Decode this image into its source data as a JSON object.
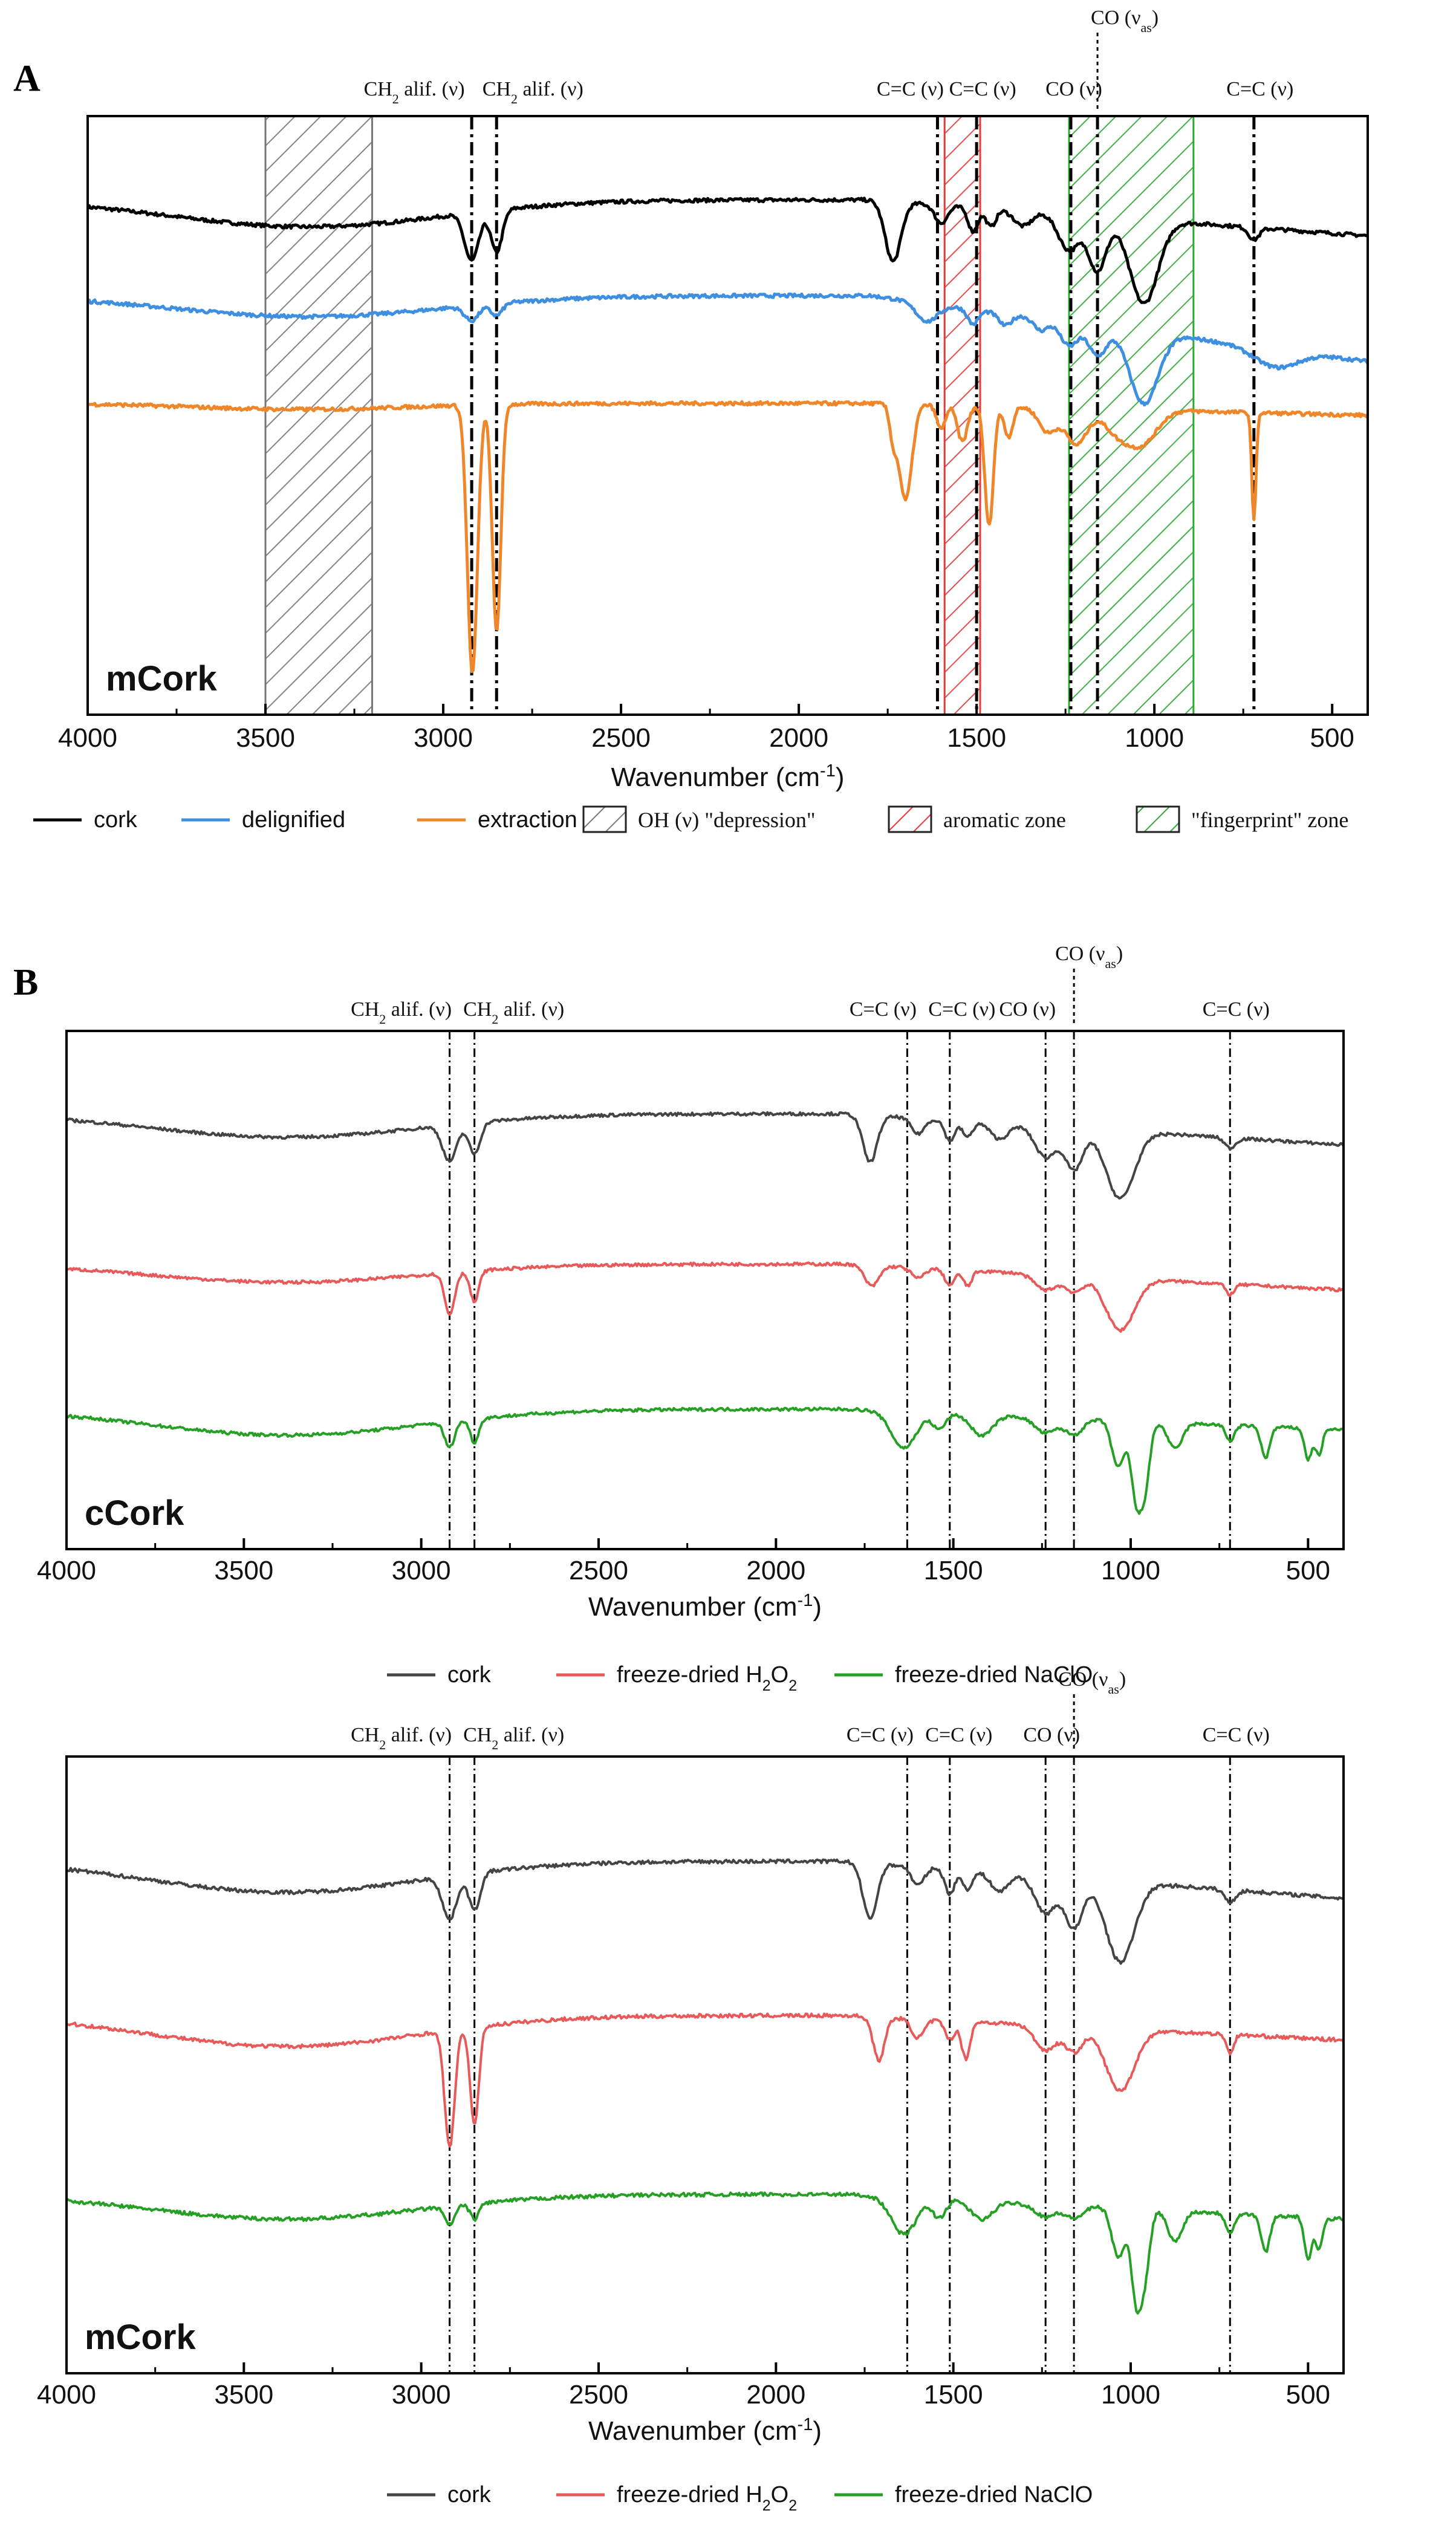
{
  "figure_labels": {
    "A": "A",
    "B": "B"
  },
  "colors": {
    "cork_A": "#000000",
    "delignified": "#3f8fe0",
    "extraction": "#f0862a",
    "cork_B": "#444444",
    "h2o2": "#e85a5a",
    "naclo": "#25a025",
    "oh_zone": "#777777",
    "aromatic_zone": "#e43a3a",
    "fingerprint_zone": "#2fa836"
  },
  "chart_data": [
    {
      "type": "line",
      "id": "A",
      "panel_label": "mCork",
      "xlabel": "Wavenumber (cm",
      "xlabel_sup": "-1",
      "xlabel_close": ")",
      "xlim": [
        4000,
        400
      ],
      "ylim": [
        0,
        1
      ],
      "ticks": [
        "4000",
        "3500",
        "3000",
        "2500",
        "2000",
        "1500",
        "1000",
        "500"
      ],
      "tick_values": [
        4000,
        3500,
        3000,
        2500,
        2000,
        1500,
        1000,
        500
      ],
      "series": [
        {
          "name": "cork",
          "color_key": "cork_A",
          "offset": 0.86,
          "bands": [
            [
              3380,
              380,
              0.045
            ],
            [
              2920,
              20,
              0.08
            ],
            [
              2850,
              16,
              0.07
            ],
            [
              1735,
              22,
              0.1
            ],
            [
              1600,
              18,
              0.03
            ],
            [
              1510,
              14,
              0.04
            ],
            [
              1460,
              14,
              0.03
            ],
            [
              1370,
              25,
              0.025
            ],
            [
              1240,
              30,
              0.06
            ],
            [
              1160,
              25,
              0.09
            ],
            [
              1030,
              40,
              0.14
            ],
            [
              720,
              15,
              0.02
            ]
          ],
          "tail": 0.06
        },
        {
          "name": "delignified",
          "color_key": "delignified",
          "offset": 0.7,
          "bands": [
            [
              3380,
              380,
              0.035
            ],
            [
              2920,
              20,
              0.025
            ],
            [
              2850,
              16,
              0.02
            ],
            [
              1640,
              30,
              0.03
            ],
            [
              1510,
              15,
              0.025
            ],
            [
              1420,
              18,
              0.02
            ],
            [
              1320,
              20,
              0.02
            ],
            [
              1240,
              25,
              0.04
            ],
            [
              1160,
              25,
              0.05
            ],
            [
              1030,
              40,
              0.12
            ],
            [
              660,
              60,
              0.03
            ]
          ],
          "tail": 0.11
        },
        {
          "name": "extraction",
          "color_key": "extraction",
          "offset": 0.52,
          "bands": [
            [
              3400,
              300,
              0.01
            ],
            [
              2918,
              14,
              0.45
            ],
            [
              2850,
              12,
              0.38
            ],
            [
              1735,
              10,
              0.05
            ],
            [
              1700,
              18,
              0.16
            ],
            [
              1600,
              12,
              0.04
            ],
            [
              1540,
              14,
              0.06
            ],
            [
              1465,
              12,
              0.2
            ],
            [
              1410,
              12,
              0.05
            ],
            [
              1300,
              25,
              0.04
            ],
            [
              1220,
              30,
              0.06
            ],
            [
              1100,
              40,
              0.04
            ],
            [
              1030,
              40,
              0.05
            ],
            [
              720,
              6,
              0.18
            ]
          ],
          "tail": 0.02
        }
      ],
      "legend": [
        {
          "label": "cork",
          "kind": "line",
          "color_key": "cork_A"
        },
        {
          "label": "delignified",
          "kind": "line",
          "color_key": "delignified"
        },
        {
          "label": "extraction",
          "kind": "line",
          "color_key": "extraction"
        },
        {
          "label": "OH (ν)  \"depression\"",
          "kind": "hatch",
          "color_key": "oh_zone"
        },
        {
          "label": "aromatic zone",
          "kind": "hatch",
          "color_key": "aromatic_zone"
        },
        {
          "label": "\"fingerprint\" zone",
          "kind": "hatch",
          "color_key": "fingerprint_zone"
        }
      ],
      "zones": [
        {
          "from": 3500,
          "to": 3200,
          "color_key": "oh_zone"
        },
        {
          "from": 1590,
          "to": 1490,
          "color_key": "aromatic_zone"
        },
        {
          "from": 1240,
          "to": 890,
          "color_key": "fingerprint_zone"
        }
      ],
      "vlines": [
        2920,
        2850,
        1610,
        1500,
        1235,
        1160,
        720
      ],
      "annotations": [
        {
          "x": 2920,
          "text": "CH",
          "sub": "2",
          "rest": " alif. (ν)",
          "dx": -95
        },
        {
          "x": 2850,
          "text": "CH",
          "sub": "2",
          "rest": " alif. (ν)",
          "dx": 60
        },
        {
          "x": 1610,
          "text": "C=C (ν)",
          "dx": -45
        },
        {
          "x": 1500,
          "text": "C=C (ν)",
          "dx": 10
        },
        {
          "x": 1235,
          "text": "CO (ν)",
          "dx": 5
        },
        {
          "x": 1160,
          "text": "CO (ν",
          "sub": "as",
          "rest": ")",
          "dx": 45,
          "high": true
        },
        {
          "x": 720,
          "text": "C=C (ν)",
          "dx": 10
        }
      ]
    },
    {
      "type": "line",
      "id": "B1",
      "panel_label": "cCork",
      "xlabel": "Wavenumber (cm",
      "xlabel_sup": "-1",
      "xlabel_close": ")",
      "xlim": [
        4000,
        400
      ],
      "ylim": [
        0,
        1
      ],
      "ticks": [
        "4000",
        "3500",
        "3000",
        "2500",
        "2000",
        "1500",
        "1000",
        "500"
      ],
      "tick_values": [
        4000,
        3500,
        3000,
        2500,
        2000,
        1500,
        1000,
        500
      ],
      "series": [
        {
          "name": "cork",
          "color_key": "cork_B",
          "offset": 0.84,
          "bands": [
            [
              3380,
              380,
              0.045
            ],
            [
              2920,
              20,
              0.07
            ],
            [
              2850,
              16,
              0.06
            ],
            [
              1735,
              20,
              0.09
            ],
            [
              1600,
              18,
              0.03
            ],
            [
              1510,
              14,
              0.04
            ],
            [
              1460,
              14,
              0.03
            ],
            [
              1370,
              25,
              0.03
            ],
            [
              1240,
              30,
              0.06
            ],
            [
              1160,
              25,
              0.08
            ],
            [
              1030,
              40,
              0.13
            ],
            [
              720,
              15,
              0.02
            ]
          ],
          "tail": 0.06
        },
        {
          "name": "freeze-dried H₂O₂",
          "color_key": "h2o2",
          "offset": 0.55,
          "bands": [
            [
              3380,
              380,
              0.035
            ],
            [
              2920,
              14,
              0.08
            ],
            [
              2850,
              12,
              0.06
            ],
            [
              1730,
              20,
              0.04
            ],
            [
              1600,
              18,
              0.02
            ],
            [
              1510,
              14,
              0.03
            ],
            [
              1460,
              12,
              0.03
            ],
            [
              1240,
              30,
              0.03
            ],
            [
              1160,
              25,
              0.03
            ],
            [
              1030,
              40,
              0.1
            ],
            [
              720,
              12,
              0.02
            ]
          ],
          "tail": 0.05
        },
        {
          "name": "freeze-dried NaClO",
          "color_key": "naclo",
          "offset": 0.27,
          "bands": [
            [
              3380,
              380,
              0.05
            ],
            [
              2920,
              14,
              0.05
            ],
            [
              2850,
              12,
              0.045
            ],
            [
              1640,
              35,
              0.07
            ],
            [
              1540,
              18,
              0.03
            ],
            [
              1420,
              30,
              0.04
            ],
            [
              1240,
              30,
              0.03
            ],
            [
              1160,
              25,
              0.03
            ],
            [
              1035,
              18,
              0.09
            ],
            [
              985,
              14,
              0.14
            ],
            [
              960,
              14,
              0.12
            ],
            [
              875,
              20,
              0.05
            ],
            [
              720,
              12,
              0.03
            ],
            [
              620,
              12,
              0.06
            ],
            [
              500,
              10,
              0.06
            ],
            [
              470,
              10,
              0.05
            ]
          ],
          "tail": 0.04
        }
      ],
      "legend": [
        {
          "label": "cork",
          "kind": "line",
          "color_key": "cork_B"
        },
        {
          "label": "freeze-dried H",
          "sub": "2",
          "mid": "O",
          "sub2": "2",
          "kind": "line",
          "color_key": "h2o2"
        },
        {
          "label": "freeze-dried NaClO",
          "kind": "line",
          "color_key": "naclo"
        }
      ],
      "zones": [],
      "vlines": [
        2920,
        2850,
        1630,
        1510,
        1240,
        1160,
        720
      ],
      "annotations": [
        {
          "x": 2920,
          "text": "CH",
          "sub": "2",
          "rest": " alif. (ν)",
          "dx": -80
        },
        {
          "x": 2850,
          "text": "CH",
          "sub": "2",
          "rest": " alif. (ν)",
          "dx": 65
        },
        {
          "x": 1630,
          "text": "C=C (ν)",
          "dx": -40
        },
        {
          "x": 1510,
          "text": "C=C (ν)",
          "dx": 20
        },
        {
          "x": 1240,
          "text": "CO (ν)",
          "dx": -30
        },
        {
          "x": 1160,
          "text": "CO (ν",
          "sub": "as",
          "rest": ")",
          "dx": 25,
          "high": true
        },
        {
          "x": 720,
          "text": "C=C (ν)",
          "dx": 10
        }
      ]
    },
    {
      "type": "line",
      "id": "B2",
      "panel_label": "mCork",
      "xlabel": "Wavenumber (cm",
      "xlabel_sup": "-1",
      "xlabel_close": ")",
      "xlim": [
        4000,
        400
      ],
      "ylim": [
        0,
        1
      ],
      "ticks": [
        "4000",
        "3500",
        "3000",
        "2500",
        "2000",
        "1500",
        "1000",
        "500"
      ],
      "tick_values": [
        4000,
        3500,
        3000,
        2500,
        2000,
        1500,
        1000,
        500
      ],
      "series": [
        {
          "name": "cork",
          "color_key": "cork_B",
          "offset": 0.83,
          "bands": [
            [
              3380,
              380,
              0.05
            ],
            [
              2920,
              20,
              0.07
            ],
            [
              2850,
              16,
              0.06
            ],
            [
              1735,
              20,
              0.09
            ],
            [
              1600,
              18,
              0.03
            ],
            [
              1510,
              14,
              0.04
            ],
            [
              1460,
              14,
              0.03
            ],
            [
              1370,
              25,
              0.03
            ],
            [
              1240,
              30,
              0.06
            ],
            [
              1160,
              25,
              0.08
            ],
            [
              1030,
              40,
              0.13
            ],
            [
              720,
              15,
              0.02
            ]
          ],
          "tail": 0.06
        },
        {
          "name": "freeze-dried H₂O₂",
          "color_key": "h2o2",
          "offset": 0.58,
          "bands": [
            [
              3380,
              380,
              0.05
            ],
            [
              2920,
              14,
              0.19
            ],
            [
              2850,
              12,
              0.16
            ],
            [
              1710,
              16,
              0.07
            ],
            [
              1600,
              18,
              0.03
            ],
            [
              1510,
              14,
              0.03
            ],
            [
              1465,
              12,
              0.06
            ],
            [
              1240,
              30,
              0.04
            ],
            [
              1160,
              25,
              0.04
            ],
            [
              1030,
              40,
              0.1
            ],
            [
              720,
              10,
              0.03
            ]
          ],
          "tail": 0.04
        },
        {
          "name": "freeze-dried NaClO",
          "color_key": "naclo",
          "offset": 0.29,
          "bands": [
            [
              3380,
              380,
              0.04
            ],
            [
              2920,
              14,
              0.03
            ],
            [
              2850,
              12,
              0.025
            ],
            [
              1640,
              35,
              0.06
            ],
            [
              1540,
              18,
              0.03
            ],
            [
              1420,
              30,
              0.03
            ],
            [
              1240,
              30,
              0.02
            ],
            [
              1160,
              25,
              0.02
            ],
            [
              1035,
              18,
              0.08
            ],
            [
              985,
              14,
              0.14
            ],
            [
              960,
              14,
              0.1
            ],
            [
              875,
              20,
              0.05
            ],
            [
              720,
              12,
              0.03
            ],
            [
              620,
              12,
              0.06
            ],
            [
              500,
              10,
              0.07
            ],
            [
              470,
              10,
              0.05
            ]
          ],
          "tail": 0.04
        }
      ],
      "legend": [
        {
          "label": "cork",
          "kind": "line",
          "color_key": "cork_B"
        },
        {
          "label": "freeze-dried H",
          "sub": "2",
          "mid": "O",
          "sub2": "2",
          "kind": "line",
          "color_key": "h2o2"
        },
        {
          "label": "freeze-dried NaClO",
          "kind": "line",
          "color_key": "naclo"
        }
      ],
      "zones": [],
      "vlines": [
        2920,
        2850,
        1630,
        1510,
        1240,
        1160,
        720
      ],
      "annotations": [
        {
          "x": 2920,
          "text": "CH",
          "sub": "2",
          "rest": " alif. (ν)",
          "dx": -80
        },
        {
          "x": 2850,
          "text": "CH",
          "sub": "2",
          "rest": " alif. (ν)",
          "dx": 65
        },
        {
          "x": 1630,
          "text": "C=C (ν)",
          "dx": -45
        },
        {
          "x": 1510,
          "text": "C=C (ν)",
          "dx": 15
        },
        {
          "x": 1240,
          "text": "CO (ν)",
          "dx": 10
        },
        {
          "x": 1160,
          "text": "CO (ν",
          "sub": "as",
          "rest": ")",
          "dx": 30,
          "high": true
        },
        {
          "x": 720,
          "text": "C=C (ν)",
          "dx": 10
        }
      ]
    }
  ]
}
